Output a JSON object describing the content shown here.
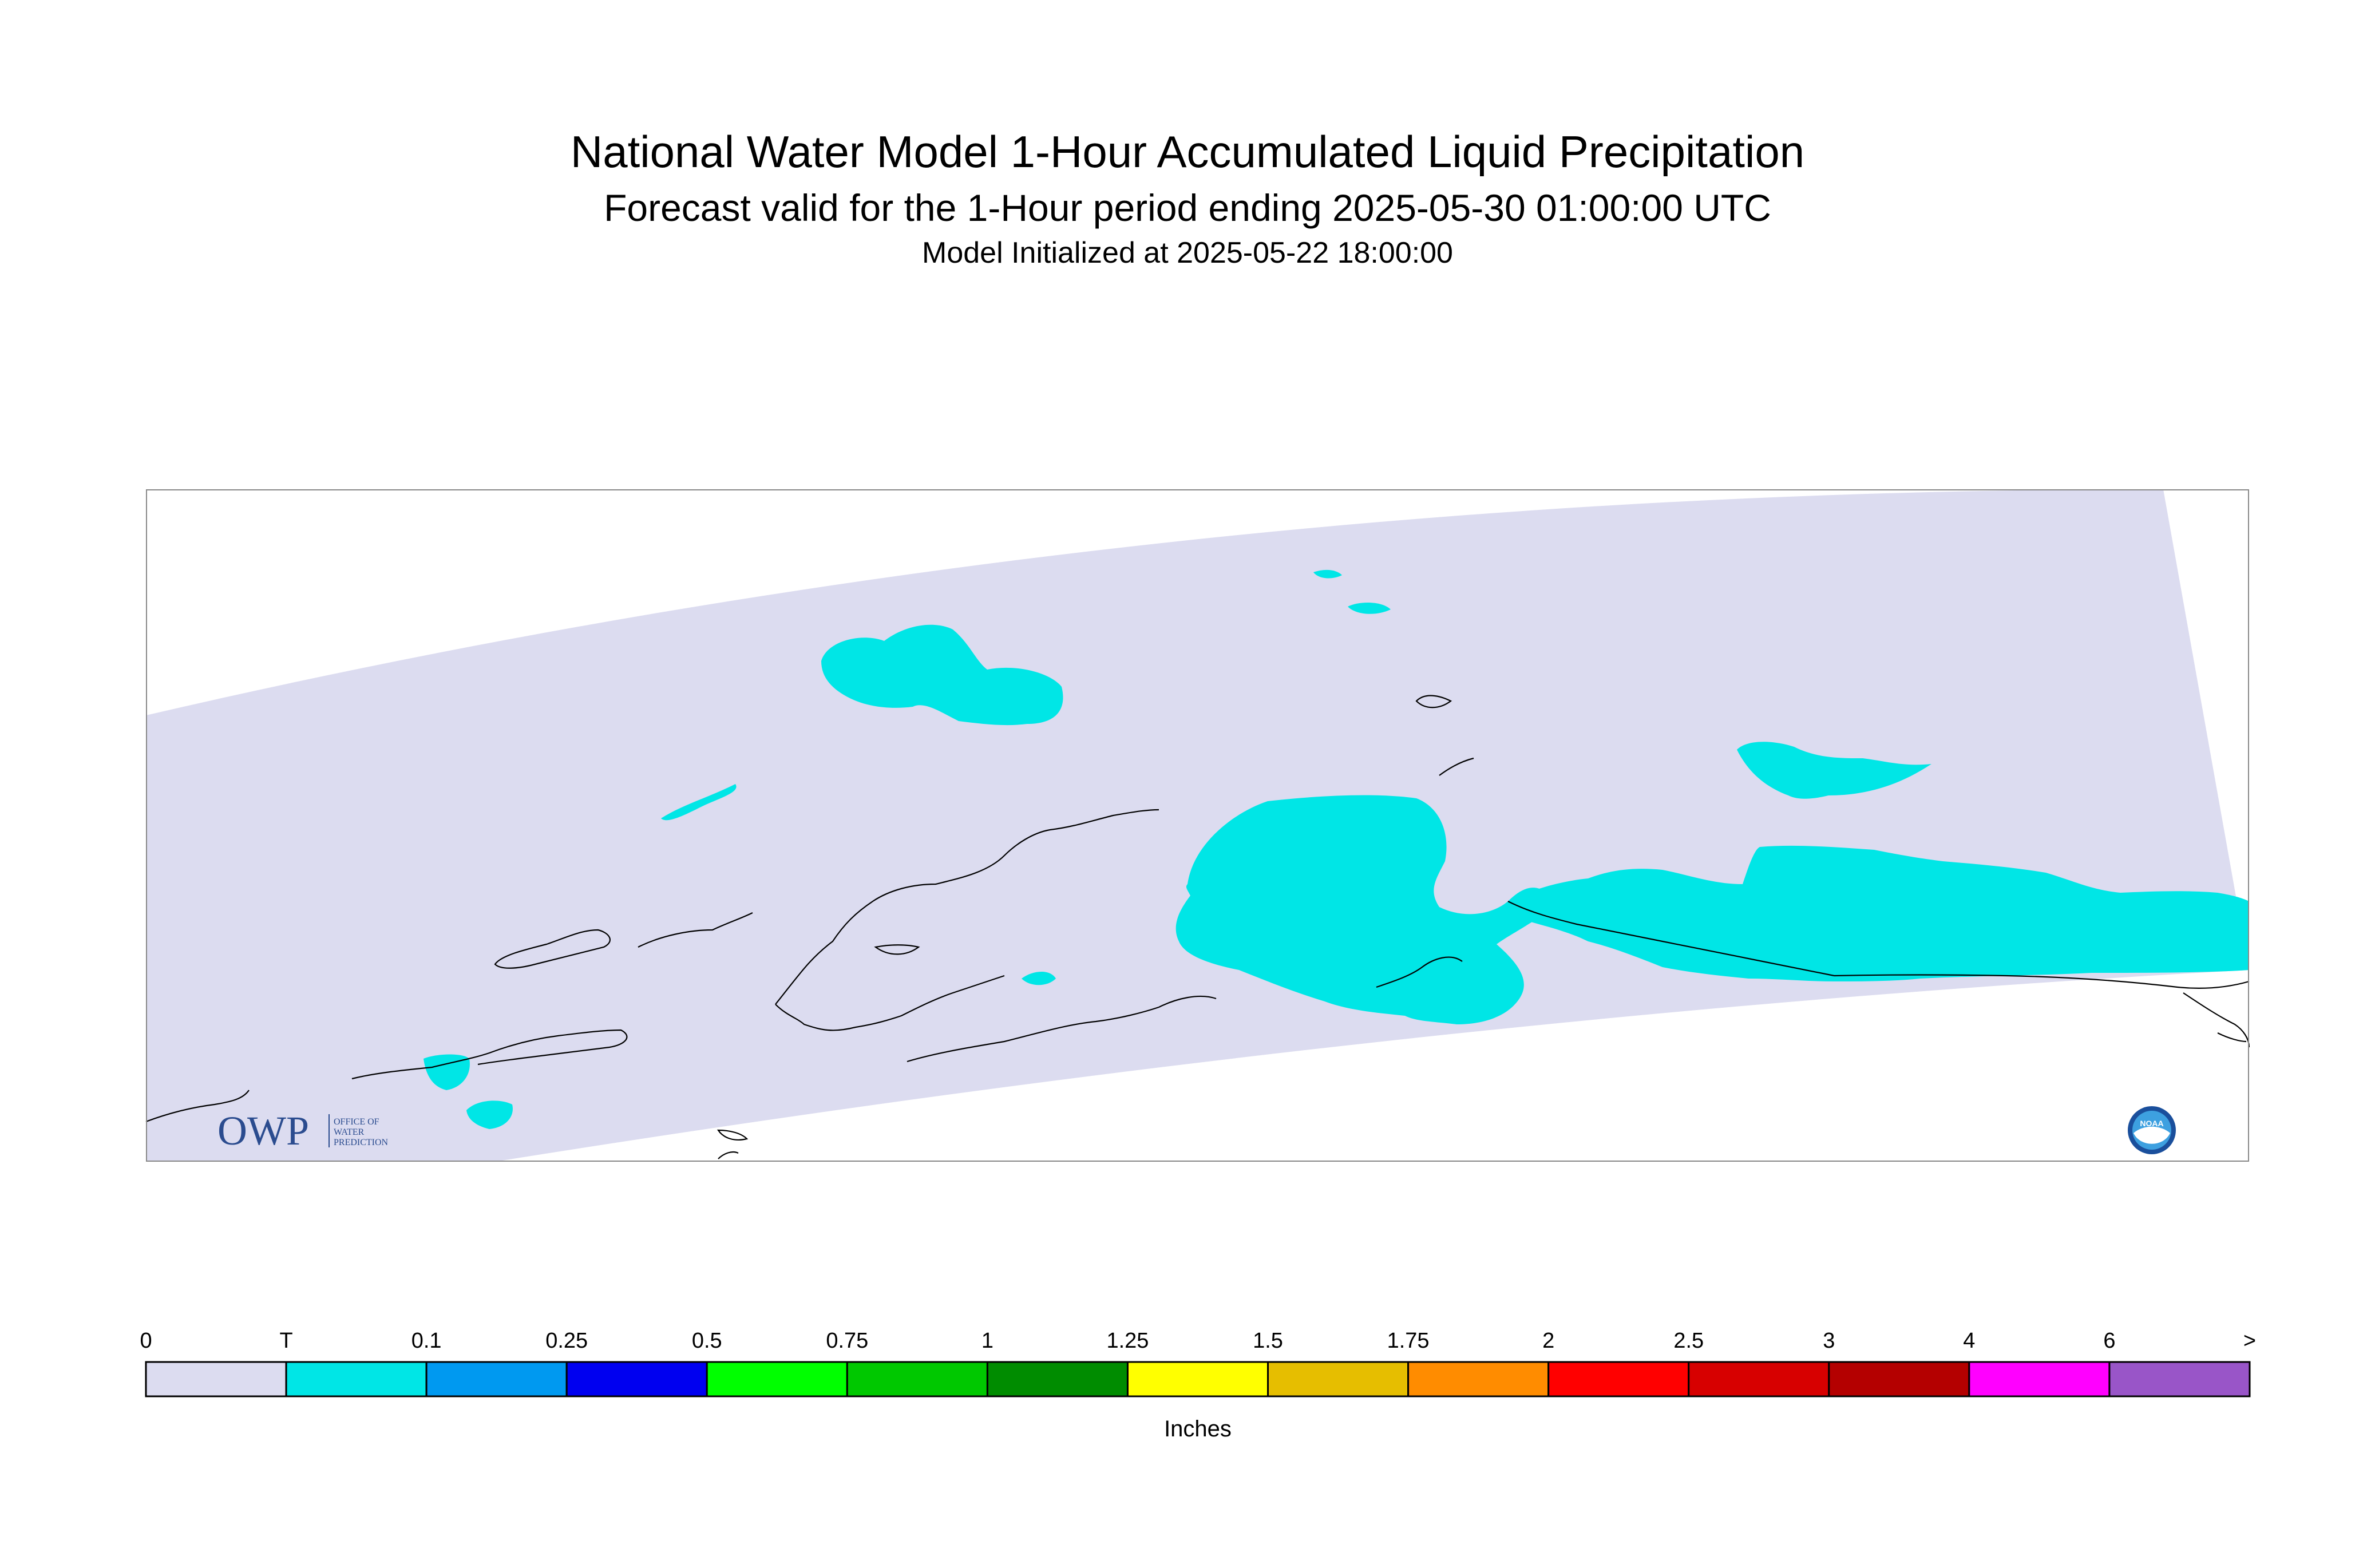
{
  "title": "National Water Model 1-Hour Accumulated Liquid Precipitation",
  "subtitle": "Forecast valid for the 1-Hour period ending 2025-05-30 01:00:00 UTC",
  "init": "Model Initialized at 2025-05-22 18:00:00",
  "logo": {
    "name": "OWP",
    "lines": [
      "OFFICE OF",
      "WATER",
      "PREDICTION"
    ]
  },
  "noaa_logo": "NOAA",
  "map_colors": {
    "domain": "#dcdcf0",
    "precip_trace": "#00e6e6",
    "coast": "#000000",
    "frame": "#888888"
  },
  "legend": {
    "unit_label": "Inches",
    "tick_labels": [
      "0",
      "T",
      "0.1",
      "0.25",
      "0.5",
      "0.75",
      "1",
      "1.25",
      "1.5",
      "1.75",
      "2",
      "2.5",
      "3",
      "4",
      "6",
      ">"
    ],
    "colors": [
      "#dcdcf0",
      "#00e6e6",
      "#0099f0",
      "#0000f0",
      "#00ff00",
      "#00c800",
      "#008c00",
      "#ffff00",
      "#e6be00",
      "#ff8c00",
      "#ff0000",
      "#d70000",
      "#b40000",
      "#ff00ff",
      "#9955c8"
    ]
  }
}
